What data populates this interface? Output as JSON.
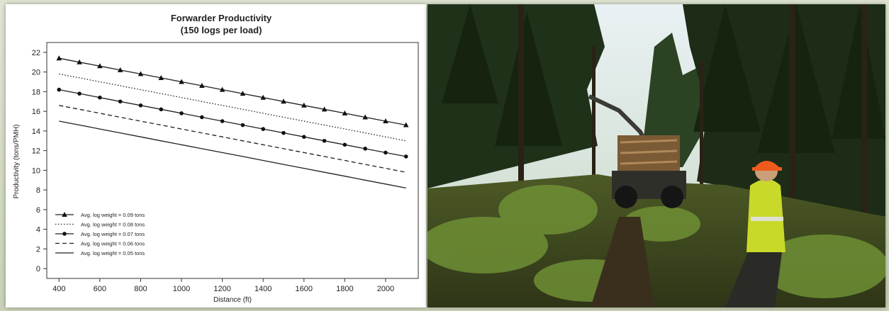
{
  "chart_data": {
    "type": "line",
    "title": "Forwarder Productivity",
    "subtitle": "(150 logs per load)",
    "xlabel": "Distance (ft)",
    "ylabel": "Productivity (tons/PMH)",
    "xlim": [
      400,
      2100
    ],
    "ylim": [
      0,
      22
    ],
    "x_ticks": [
      "400",
      "600",
      "800",
      "1000",
      "1200",
      "1400",
      "1600",
      "1800",
      "2000"
    ],
    "y_ticks": [
      "0",
      "2",
      "4",
      "6",
      "8",
      "10",
      "12",
      "14",
      "16",
      "18",
      "20",
      "22"
    ],
    "grid": false,
    "legend_position": "bottom-left",
    "x": [
      400,
      500,
      600,
      700,
      800,
      900,
      1000,
      1100,
      1200,
      1300,
      1400,
      1500,
      1600,
      1700,
      1800,
      1900,
      2000,
      2100
    ],
    "series": [
      {
        "name": "Avg. log weight = 0.09 tons",
        "style": "solid",
        "marker": "triangle",
        "values": [
          21.4,
          21.0,
          20.6,
          20.2,
          19.8,
          19.4,
          19.0,
          18.6,
          18.2,
          17.8,
          17.4,
          17.0,
          16.6,
          16.2,
          15.8,
          15.4,
          15.0,
          14.6
        ]
      },
      {
        "name": "Avg. log weight = 0.08 tons",
        "style": "dotted",
        "marker": "none",
        "values": [
          19.8,
          19.4,
          19.0,
          18.6,
          18.2,
          17.8,
          17.4,
          17.0,
          16.6,
          16.2,
          15.8,
          15.4,
          15.0,
          14.6,
          14.2,
          13.8,
          13.4,
          13.0
        ]
      },
      {
        "name": "Avg. log weight = 0.07 tons",
        "style": "solid",
        "marker": "circle",
        "values": [
          18.2,
          17.8,
          17.4,
          17.0,
          16.6,
          16.2,
          15.8,
          15.4,
          15.0,
          14.6,
          14.2,
          13.8,
          13.4,
          13.0,
          12.6,
          12.2,
          11.8,
          11.4
        ]
      },
      {
        "name": "Avg. log weight = 0.06 tons",
        "style": "dashed",
        "marker": "none",
        "values": [
          16.6,
          16.2,
          15.8,
          15.4,
          15.0,
          14.6,
          14.2,
          13.8,
          13.4,
          13.0,
          12.6,
          12.2,
          11.8,
          11.4,
          11.0,
          10.6,
          10.2,
          9.8
        ]
      },
      {
        "name": "Avg. log weight = 0.05 tons",
        "style": "solid",
        "marker": "none",
        "values": [
          15.0,
          14.6,
          14.2,
          13.8,
          13.4,
          13.0,
          12.6,
          12.2,
          11.8,
          11.4,
          11.0,
          10.6,
          10.2,
          9.8,
          9.4,
          9.0,
          8.6,
          8.2
        ]
      }
    ]
  }
}
